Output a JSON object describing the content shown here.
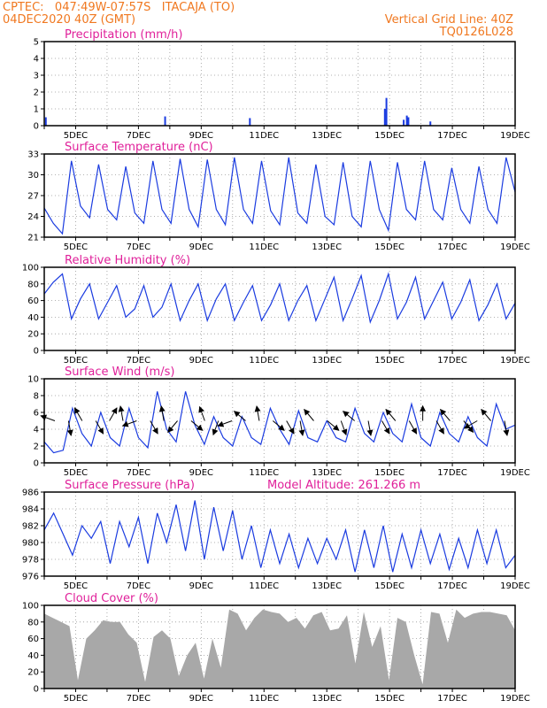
{
  "header": {
    "line1_left": "CPTEC:   047:49W-07:57S   ITACAJA (TO)",
    "line2_left": "04DEC2020 40Z (GMT)",
    "line1_right": "Vertical Grid Line: 40Z",
    "line2_right": "TQ0126L028"
  },
  "colors": {
    "header": "#f07820",
    "panel_title": "#e0209a",
    "series_line": "#1a3be0",
    "bars": "#1a3be0",
    "area": "#a8a8a8",
    "wind_arrow": "#000000",
    "grid": "#999999"
  },
  "chart_data": [
    {
      "type": "bar",
      "title": "Precipitation (mm/h)",
      "xlim": [
        4,
        19
      ],
      "ylim": [
        0,
        5
      ],
      "yticks": [
        0,
        1,
        2,
        3,
        4,
        5
      ],
      "x_tick_labels": [
        "5DEC",
        "7DEC",
        "9DEC",
        "11DEC",
        "13DEC",
        "15DEC",
        "17DEC",
        "19DEC"
      ],
      "grid": true,
      "points": [
        {
          "x": 4.05,
          "y": 0.5
        },
        {
          "x": 7.85,
          "y": 0.55
        },
        {
          "x": 10.55,
          "y": 0.45
        },
        {
          "x": 14.85,
          "y": 1.0
        },
        {
          "x": 14.9,
          "y": 1.65
        },
        {
          "x": 15.45,
          "y": 0.35
        },
        {
          "x": 15.55,
          "y": 0.6
        },
        {
          "x": 15.6,
          "y": 0.5
        },
        {
          "x": 16.3,
          "y": 0.25
        }
      ]
    },
    {
      "type": "line",
      "title": "Surface Temperature (nC)",
      "xlim": [
        4,
        19
      ],
      "ylim": [
        21,
        33
      ],
      "yticks": [
        21,
        24,
        27,
        30,
        33
      ],
      "x_tick_labels": [
        "5DEC",
        "7DEC",
        "9DEC",
        "11DEC",
        "13DEC",
        "15DEC",
        "17DEC",
        "19DEC"
      ],
      "grid": true,
      "values": [
        25.2,
        23.0,
        21.5,
        32.0,
        25.5,
        23.8,
        31.5,
        25.0,
        23.5,
        31.2,
        24.5,
        23.0,
        32.0,
        25.0,
        23.0,
        32.3,
        25.0,
        22.5,
        32.2,
        25.0,
        22.8,
        32.5,
        25.0,
        23.0,
        32.0,
        24.8,
        22.8,
        32.5,
        24.5,
        23.0,
        31.5,
        24.0,
        22.8,
        31.8,
        24.0,
        22.5,
        32.0,
        25.0,
        22.0,
        31.8,
        25.0,
        23.5,
        32.0,
        25.0,
        23.5,
        31.0,
        25.0,
        23.0,
        31.2,
        25.0,
        23.0,
        32.5,
        27.5
      ]
    },
    {
      "type": "line",
      "title": "Relative Humidity (%)",
      "xlim": [
        4,
        19
      ],
      "ylim": [
        0,
        100
      ],
      "yticks": [
        0,
        20,
        40,
        60,
        80,
        100
      ],
      "x_tick_labels": [
        "5DEC",
        "7DEC",
        "9DEC",
        "11DEC",
        "13DEC",
        "15DEC",
        "17DEC",
        "19DEC"
      ],
      "grid": true,
      "values": [
        68,
        82,
        92,
        38,
        62,
        80,
        38,
        58,
        78,
        40,
        50,
        78,
        40,
        52,
        80,
        36,
        60,
        80,
        36,
        62,
        80,
        36,
        58,
        78,
        36,
        55,
        80,
        36,
        60,
        78,
        36,
        62,
        88,
        36,
        62,
        90,
        34,
        60,
        92,
        38,
        58,
        88,
        38,
        60,
        82,
        38,
        58,
        85,
        36,
        55,
        80,
        38,
        57
      ]
    },
    {
      "type": "line",
      "title": "Surface Wind (m/s)",
      "xlim": [
        4,
        19
      ],
      "ylim": [
        0,
        10
      ],
      "yticks": [
        0,
        2,
        4,
        6,
        8,
        10
      ],
      "x_tick_labels": [
        "5DEC",
        "7DEC",
        "9DEC",
        "11DEC",
        "13DEC",
        "15DEC",
        "17DEC",
        "19DEC"
      ],
      "grid": true,
      "values": [
        2.5,
        1.2,
        1.5,
        6.5,
        3.5,
        2.0,
        6.0,
        3.0,
        2.0,
        6.5,
        3.0,
        1.8,
        8.5,
        4.0,
        2.5,
        8.5,
        4.5,
        2.2,
        5.5,
        3.0,
        2.0,
        5.5,
        3.0,
        2.2,
        6.5,
        4.0,
        2.2,
        6.2,
        3.0,
        2.5,
        5.0,
        3.0,
        2.5,
        6.5,
        3.5,
        2.5,
        6.0,
        3.5,
        2.5,
        7.0,
        3.0,
        2.0,
        6.0,
        3.5,
        2.5,
        5.5,
        3.0,
        2.0,
        7.0,
        4.0,
        4.5
      ],
      "arrow_directions_deg": [
        200,
        80,
        240,
        60,
        300,
        260,
        160,
        60,
        260,
        130,
        40,
        250,
        110,
        160,
        220,
        260,
        40,
        60,
        80,
        230,
        40,
        70,
        220,
        80,
        60,
        230,
        60,
        270,
        60,
        230,
        50,
        150,
        230,
        80
      ]
    },
    {
      "type": "line",
      "title": "Surface Pressure (hPa)",
      "subtitle": "Model Altitude: 261.266 m",
      "xlim": [
        4,
        19
      ],
      "ylim": [
        976,
        986
      ],
      "yticks": [
        976,
        978,
        980,
        982,
        984,
        986
      ],
      "x_tick_labels": [
        "5DEC",
        "7DEC",
        "9DEC",
        "11DEC",
        "13DEC",
        "15DEC",
        "17DEC",
        "19DEC"
      ],
      "grid": true,
      "values": [
        981.5,
        983.5,
        981.0,
        978.5,
        982.0,
        980.5,
        982.5,
        977.5,
        982.5,
        979.5,
        983.0,
        977.5,
        983.5,
        980.0,
        984.5,
        979.0,
        985.0,
        978.0,
        984.2,
        979.0,
        983.8,
        978.0,
        982.0,
        977.0,
        981.5,
        977.5,
        981.0,
        977.0,
        980.5,
        977.5,
        980.5,
        978.0,
        981.5,
        976.5,
        981.5,
        977.0,
        982.0,
        976.5,
        981.0,
        977.0,
        981.5,
        977.5,
        981.0,
        976.8,
        980.5,
        977.0,
        981.5,
        977.5,
        981.5,
        977.0,
        978.5
      ]
    },
    {
      "type": "area",
      "title": "Cloud Cover (%)",
      "xlim": [
        4,
        19
      ],
      "ylim": [
        0,
        100
      ],
      "yticks": [
        0,
        20,
        40,
        60,
        80,
        100
      ],
      "x_tick_labels": [
        "5DEC",
        "7DEC",
        "9DEC",
        "11DEC",
        "13DEC",
        "15DEC",
        "17DEC",
        "19DEC"
      ],
      "grid": true,
      "values": [
        90,
        85,
        80,
        75,
        10,
        60,
        70,
        82,
        80,
        80,
        65,
        55,
        8,
        62,
        70,
        60,
        15,
        40,
        55,
        12,
        60,
        25,
        95,
        90,
        70,
        85,
        95,
        92,
        90,
        80,
        85,
        72,
        88,
        92,
        70,
        72,
        88,
        30,
        92,
        50,
        75,
        10,
        85,
        80,
        40,
        5,
        92,
        90,
        55,
        95,
        85,
        90,
        92,
        92,
        90,
        88,
        70
      ]
    }
  ]
}
